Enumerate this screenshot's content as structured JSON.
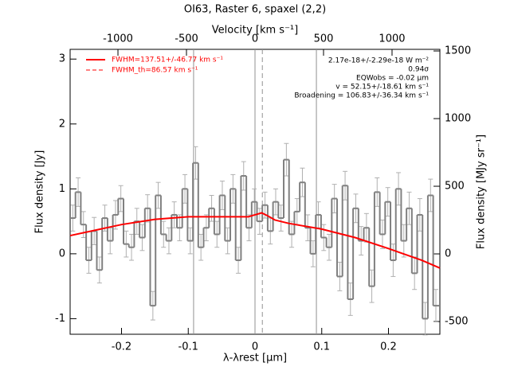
{
  "chart_data": {
    "type": "step",
    "title": "OI63, Raster 6, spaxel (2,2)",
    "xlabel": "λ-λrest [μm]",
    "ylabel": "Flux density [Jy]",
    "y2label": "Flux density [MJy sr⁻¹]",
    "x2label": "Velocity [km s⁻¹]",
    "xlim": [
      -0.277,
      0.277
    ],
    "xticks": [
      -0.2,
      -0.1,
      0.0,
      0.1,
      0.2
    ],
    "x2lim": [
      -1349,
      1349
    ],
    "x2ticks": [
      -1000,
      -500,
      0,
      500,
      1000
    ],
    "ylim": [
      -1.24,
      3.15
    ],
    "yticks": [
      -1,
      0,
      1,
      2,
      3
    ],
    "y2lim": [
      -594,
      1512
    ],
    "y2ticks": [
      -500,
      0,
      500,
      1000,
      1500
    ],
    "color": "#808080",
    "error_color": "#b0b0b0",
    "x": [
      -0.273,
      -0.265,
      -0.257,
      -0.249,
      -0.241,
      -0.233,
      -0.225,
      -0.217,
      -0.209,
      -0.201,
      -0.193,
      -0.185,
      -0.177,
      -0.169,
      -0.161,
      -0.153,
      -0.145,
      -0.137,
      -0.129,
      -0.121,
      -0.113,
      -0.105,
      -0.097,
      -0.089,
      -0.081,
      -0.073,
      -0.065,
      -0.057,
      -0.049,
      -0.041,
      -0.033,
      -0.025,
      -0.017,
      -0.009,
      -0.001,
      0.007,
      0.015,
      0.023,
      0.031,
      0.039,
      0.047,
      0.055,
      0.063,
      0.071,
      0.079,
      0.087,
      0.095,
      0.103,
      0.111,
      0.119,
      0.127,
      0.135,
      0.143,
      0.151,
      0.159,
      0.167,
      0.175,
      0.183,
      0.191,
      0.199,
      0.207,
      0.215,
      0.223,
      0.231,
      0.239,
      0.247,
      0.255,
      0.263,
      0.271
    ],
    "values": [
      0.55,
      0.95,
      0.45,
      -0.1,
      0.35,
      -0.25,
      0.55,
      0.2,
      0.6,
      0.85,
      0.15,
      0.1,
      0.5,
      0.25,
      0.7,
      -0.8,
      0.9,
      0.3,
      0.2,
      0.6,
      0.4,
      1.0,
      0.2,
      1.4,
      0.1,
      0.4,
      0.7,
      0.3,
      0.9,
      0.2,
      1.0,
      -0.1,
      1.2,
      0.4,
      0.8,
      0.5,
      0.75,
      0.35,
      0.8,
      0.55,
      1.45,
      0.3,
      0.65,
      1.1,
      0.4,
      0.0,
      0.6,
      0.25,
      0.1,
      0.85,
      -0.35,
      1.05,
      -0.7,
      0.7,
      0.2,
      0.4,
      -0.5,
      0.95,
      0.3,
      0.8,
      -0.1,
      1.0,
      0.2,
      0.7,
      -0.3,
      0.6,
      -1.0,
      0.9,
      -0.8
    ],
    "errors": [
      0.2,
      0.22,
      0.2,
      0.2,
      0.21,
      0.2,
      0.2,
      0.2,
      0.22,
      0.2,
      0.2,
      0.2,
      0.2,
      0.2,
      0.21,
      0.22,
      0.2,
      0.2,
      0.2,
      0.2,
      0.2,
      0.22,
      0.2,
      0.25,
      0.2,
      0.2,
      0.2,
      0.2,
      0.22,
      0.2,
      0.22,
      0.2,
      0.22,
      0.2,
      0.2,
      0.2,
      0.2,
      0.2,
      0.2,
      0.2,
      0.25,
      0.2,
      0.2,
      0.22,
      0.2,
      0.2,
      0.2,
      0.2,
      0.2,
      0.22,
      0.22,
      0.22,
      0.25,
      0.22,
      0.22,
      0.22,
      0.25,
      0.22,
      0.22,
      0.22,
      0.25,
      0.25,
      0.25,
      0.25,
      0.25,
      0.25,
      0.25,
      0.25,
      0.25
    ],
    "vlines": [
      {
        "x": -0.092,
        "style": "solid"
      },
      {
        "x": 0.0,
        "style": "solid"
      },
      {
        "x": 0.092,
        "style": "solid"
      },
      {
        "x": 0.011,
        "style": "dashed"
      }
    ],
    "series": [
      {
        "name": "FWHM=137.51+/-46.77 km s⁻¹",
        "color": "#ff0000",
        "dash": false,
        "x": [
          -0.277,
          -0.2,
          -0.15,
          -0.1,
          -0.05,
          -0.01,
          0.0,
          0.01,
          0.02,
          0.03,
          0.05,
          0.1,
          0.15,
          0.2,
          0.25,
          0.277
        ],
        "values": [
          0.28,
          0.45,
          0.53,
          0.57,
          0.57,
          0.57,
          0.6,
          0.63,
          0.58,
          0.52,
          0.47,
          0.38,
          0.25,
          0.08,
          -0.1,
          -0.22
        ]
      },
      {
        "name": "FWHM_th=86.57 km s⁻¹",
        "color": "#ff0000",
        "dash": true,
        "x": [
          -0.01,
          0.0,
          0.01,
          0.02,
          0.03
        ],
        "values": [
          0.57,
          0.6,
          0.635,
          0.58,
          0.52
        ]
      }
    ],
    "legend": "upper left",
    "annotations": [
      "2.17e-18+/-2.29e-18 W m⁻²",
      "0.94σ",
      "EQWobs = -0.02 μm",
      "v = 52.15+/-18.61 km s⁻¹",
      "Broadening = 106.83+/-36.34 km s⁻¹"
    ]
  }
}
